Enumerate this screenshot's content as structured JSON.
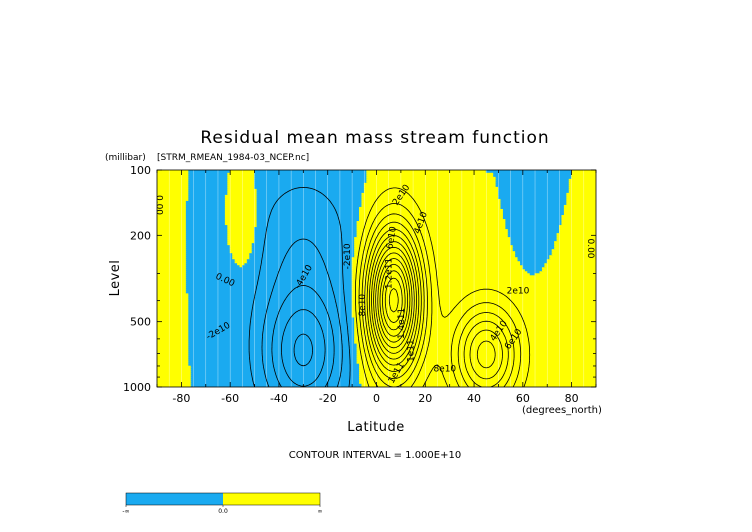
{
  "chart_data": {
    "type": "contour",
    "title": "Residual mean mass stream function",
    "subtitle": "[STRM_RMEAN_1984-03_NCEP.nc]",
    "xlabel": "Latitude",
    "xunits": "(degrees_north)",
    "ylabel": "Level",
    "yunits": "(millibar)",
    "xlim": [
      -90,
      90
    ],
    "ylim": [
      1000,
      100
    ],
    "yscale": "log",
    "x_ticks": [
      -80,
      -60,
      -40,
      -20,
      0,
      20,
      40,
      60,
      80
    ],
    "y_ticks": [
      100,
      200,
      500,
      1000
    ],
    "contour_interval_text": "CONTOUR INTERVAL = 1.000E+10",
    "contour_interval": 10000000000,
    "colors": {
      "negative": "#1aaaf0",
      "positive": "#ffff00",
      "lines": "#000000"
    },
    "colorbar": {
      "labels": [
        "-∞",
        "0.0",
        "∞"
      ]
    },
    "contour_labels": [
      {
        "text": "0.00",
        "lat": -89,
        "p": 145,
        "rot": 90
      },
      {
        "text": "0.00",
        "lat": 88,
        "p": 230,
        "rot": 90
      },
      {
        "text": "0.00",
        "lat": -62,
        "p": 320,
        "rot": 25
      },
      {
        "text": "-2e10",
        "lat": -65,
        "p": 550,
        "rot": -30
      },
      {
        "text": "-4e10",
        "lat": -30,
        "p": 310,
        "rot": -60
      },
      {
        "text": "-2e10",
        "lat": -12,
        "p": 250,
        "rot": -90
      },
      {
        "text": "2e10",
        "lat": 10,
        "p": 130,
        "rot": -55
      },
      {
        "text": "4e10",
        "lat": 18,
        "p": 175,
        "rot": -70
      },
      {
        "text": "6e10",
        "lat": 6,
        "p": 205,
        "rot": -80
      },
      {
        "text": "8e10",
        "lat": -6,
        "p": 420,
        "rot": -90
      },
      {
        "text": "1.2e11",
        "lat": 5,
        "p": 300,
        "rot": -90
      },
      {
        "text": "1.4e11",
        "lat": 10,
        "p": 510,
        "rot": -90
      },
      {
        "text": "1e11",
        "lat": 14,
        "p": 680,
        "rot": -90
      },
      {
        "text": "1e11",
        "lat": 8,
        "p": 860,
        "rot": -60
      },
      {
        "text": "8e10",
        "lat": 28,
        "p": 820,
        "rot": 0
      },
      {
        "text": "2e10",
        "lat": 58,
        "p": 360,
        "rot": 0
      },
      {
        "text": "4e10",
        "lat": 50,
        "p": 550,
        "rot": -55
      },
      {
        "text": "6e10",
        "lat": 56,
        "p": 600,
        "rot": -55
      }
    ]
  }
}
